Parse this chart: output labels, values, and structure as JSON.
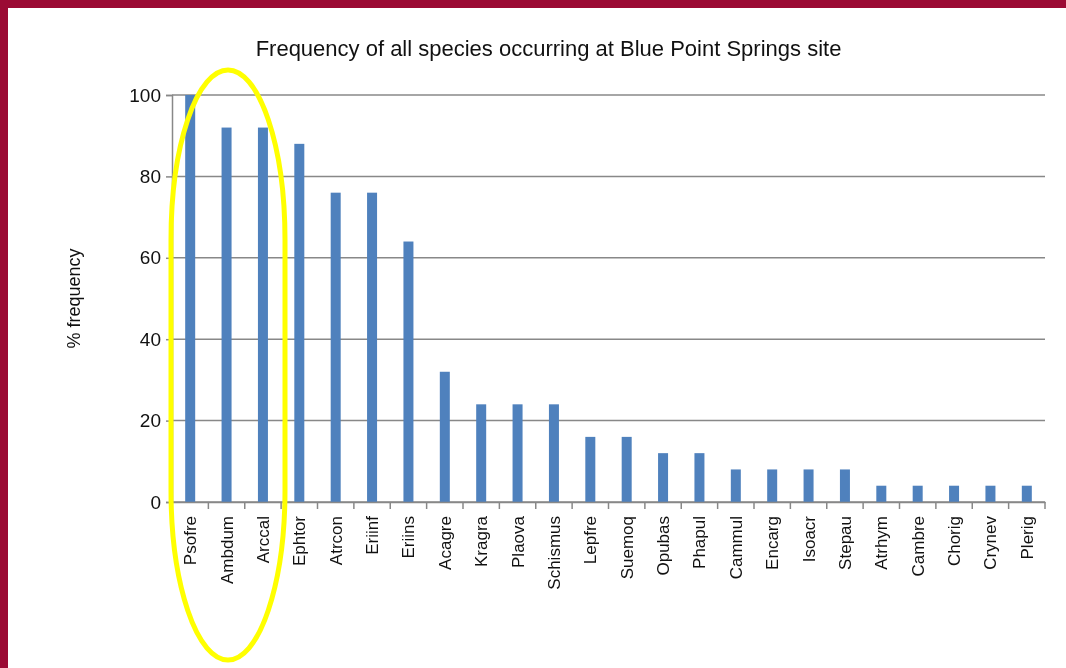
{
  "chart_data": {
    "type": "bar",
    "title": "Frequency of all species occurring at Blue Point Springs site",
    "ylabel": "% frequency",
    "categories": [
      "Psofre",
      "Ambdum",
      "Arccal",
      "Ephtor",
      "Atrcon",
      "Eriinf",
      "Eriins",
      "Acagre",
      "Kragra",
      "Plaova",
      "Schismus",
      "Lepfre",
      "Suemoq",
      "Opubas",
      "Phapul",
      "Cammul",
      "Encarg",
      "Isoacr",
      "Stepau",
      "Atrhym",
      "Cambre",
      "Chorig",
      "Crynev",
      "Plerig"
    ],
    "values": [
      100,
      92,
      92,
      88,
      76,
      76,
      64,
      32,
      24,
      24,
      24,
      16,
      16,
      12,
      12,
      8,
      8,
      8,
      8,
      4,
      4,
      4,
      4,
      4
    ],
    "color": "#4f81bd",
    "ylim": [
      0,
      100
    ],
    "yticks": [
      0,
      20,
      40,
      60,
      80,
      100
    ],
    "grid": "y"
  }
}
